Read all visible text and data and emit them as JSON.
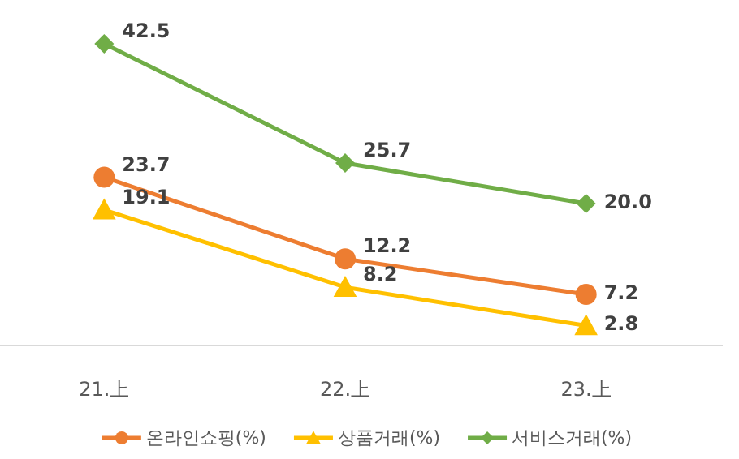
{
  "chart_data": {
    "type": "line",
    "categories": [
      "21.上",
      "22.上",
      "23.上"
    ],
    "series": [
      {
        "name": "온라인쇼핑(%)",
        "color": "#ed7d31",
        "marker": "circle",
        "values": [
          23.7,
          12.2,
          7.2
        ],
        "value_labels": [
          "23.7",
          "12.2",
          "7.2"
        ]
      },
      {
        "name": "상품거래(%)",
        "color": "#ffc000",
        "marker": "triangle",
        "values": [
          19.1,
          8.2,
          2.8
        ],
        "value_labels": [
          "19.1",
          "8.2",
          "2.8"
        ]
      },
      {
        "name": "서비스거래(%)",
        "color": "#70ad47",
        "marker": "diamond",
        "values": [
          42.5,
          25.7,
          20.0
        ],
        "value_labels": [
          "42.5",
          "25.7",
          "20.0"
        ]
      }
    ],
    "legend": "bottom"
  }
}
